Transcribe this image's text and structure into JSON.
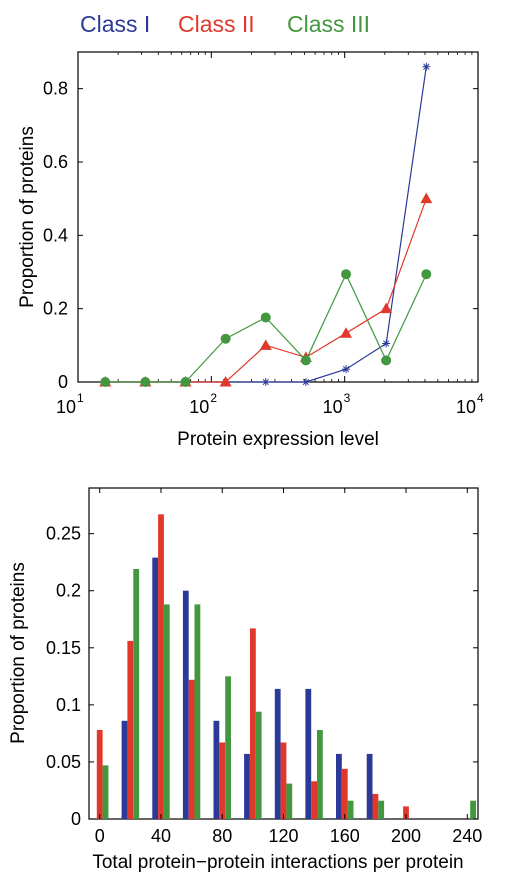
{
  "colors": {
    "class1": "#2b3a99",
    "class2": "#e0392b",
    "class3": "#43983f"
  },
  "legend": [
    {
      "label": "Class I",
      "color": "#2b3a99"
    },
    {
      "label": "Class II",
      "color": "#e0392b"
    },
    {
      "label": "Class III",
      "color": "#43983f"
    }
  ],
  "chart_data": [
    {
      "type": "line",
      "xlabel": "Protein expression level",
      "ylabel": "Proportion of proteins",
      "xscale": "log",
      "xlim": [
        10,
        10000
      ],
      "ylim": [
        0,
        0.9
      ],
      "x_tick_labels": [
        {
          "value": 10,
          "base": "10",
          "exp": "1"
        },
        {
          "value": 100,
          "base": "10",
          "exp": "2"
        },
        {
          "value": 1000,
          "base": "10",
          "exp": "3"
        },
        {
          "value": 10000,
          "base": "10",
          "exp": "4"
        }
      ],
      "y_ticks": [
        0,
        0.2,
        0.4,
        0.6,
        0.8
      ],
      "y_tick_labels": [
        "0",
        "0.2",
        "0.4",
        "0.6",
        "0.8"
      ],
      "series": [
        {
          "name": "Class I",
          "marker": "star",
          "x": [
            16,
            32,
            64,
            128,
            256,
            512,
            1024,
            2048,
            4096
          ],
          "y": [
            0,
            0,
            0,
            0,
            0,
            0,
            0.035,
            0.105,
            0.86
          ]
        },
        {
          "name": "Class II",
          "marker": "triangle",
          "x": [
            16,
            32,
            64,
            128,
            256,
            512,
            1024,
            2048,
            4096
          ],
          "y": [
            0,
            0,
            0,
            0,
            0.1,
            0.067,
            0.133,
            0.2,
            0.5
          ]
        },
        {
          "name": "Class III",
          "marker": "circle",
          "x": [
            16,
            32,
            64,
            128,
            256,
            512,
            1024,
            2048,
            4096
          ],
          "y": [
            0,
            0,
            0,
            0.118,
            0.176,
            0.059,
            0.294,
            0.059,
            0.294
          ]
        }
      ]
    },
    {
      "type": "bar",
      "xlabel": "Total protein−protein interactions per protein",
      "ylabel": "Proportion of proteins",
      "xlim": [
        -7,
        247
      ],
      "ylim": [
        0,
        0.29
      ],
      "x_ticks": [
        0,
        40,
        80,
        120,
        160,
        200,
        240
      ],
      "x_tick_labels": [
        "0",
        "40",
        "80",
        "120",
        "160",
        "200",
        "240"
      ],
      "y_ticks": [
        0,
        0.05,
        0.1,
        0.15,
        0.2,
        0.25
      ],
      "y_tick_labels": [
        "0",
        "0.05",
        "0.1",
        "0.15",
        "0.2",
        "0.25"
      ],
      "categories": [
        0,
        20,
        40,
        60,
        80,
        100,
        120,
        140,
        160,
        180,
        200,
        220,
        240
      ],
      "series": [
        {
          "name": "Class I",
          "values": [
            0,
            0.086,
            0.229,
            0.2,
            0.086,
            0.057,
            0.114,
            0.114,
            0.057,
            0.057,
            0,
            0,
            0
          ]
        },
        {
          "name": "Class II",
          "values": [
            0.078,
            0.156,
            0.267,
            0.122,
            0.067,
            0.167,
            0.067,
            0.033,
            0.044,
            0.022,
            0.011,
            0,
            0
          ]
        },
        {
          "name": "Class III",
          "values": [
            0.047,
            0.219,
            0.188,
            0.188,
            0.125,
            0.094,
            0.031,
            0.078,
            0.016,
            0.016,
            0,
            0,
            0.016
          ]
        }
      ]
    }
  ]
}
